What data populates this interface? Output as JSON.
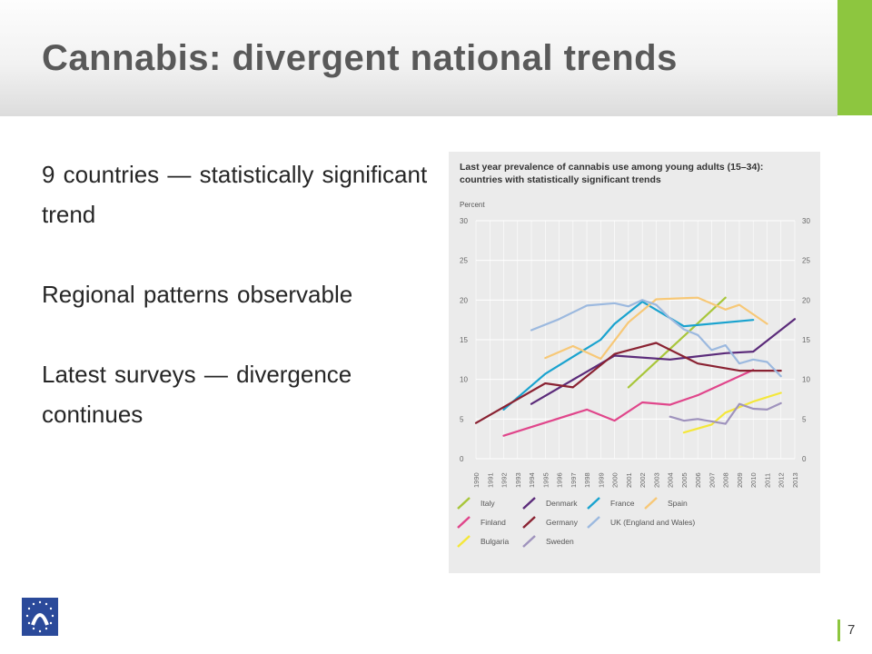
{
  "slide": {
    "title": "Cannabis: divergent national trends",
    "page_number": "7",
    "accent_color": "#8dc63f"
  },
  "bullets": [
    "9 countries — statistically significant trend",
    "Regional patterns observable",
    "Latest surveys — divergence continues"
  ],
  "logo": {
    "icon": "emcdda-logo-icon",
    "color": "#2b4a9a"
  },
  "chart_data": {
    "type": "line",
    "title": "Last year prevalence of cannabis use among young adults (15–34): countries with statistically significant trends",
    "ylabel": "Percent",
    "xlabel": "",
    "ylim": [
      0,
      30
    ],
    "yticks": [
      0,
      5,
      10,
      15,
      20,
      25,
      30
    ],
    "x": [
      "1990",
      "1991",
      "1992",
      "1993",
      "1994",
      "1995",
      "1996",
      "1997",
      "1998",
      "1999",
      "2000",
      "2001",
      "2002",
      "2003",
      "2004",
      "2005",
      "2006",
      "2007",
      "2008",
      "2009",
      "2010",
      "2011",
      "2012",
      "2013"
    ],
    "grid": true,
    "legend_position": "bottom",
    "series": [
      {
        "name": "Italy",
        "color": "#a8c63a",
        "points": [
          [
            2001,
            9.0
          ],
          [
            2008,
            20.3
          ]
        ]
      },
      {
        "name": "Denmark",
        "color": "#5b2b7a",
        "points": [
          [
            1994,
            6.9
          ],
          [
            2000,
            13.0
          ],
          [
            2004,
            12.5
          ],
          [
            2008,
            13.3
          ],
          [
            2010,
            13.5
          ],
          [
            2013,
            17.6
          ]
        ]
      },
      {
        "name": "France",
        "color": "#1aa3cf",
        "points": [
          [
            1992,
            6.2
          ],
          [
            1995,
            10.7
          ],
          [
            1999,
            15.0
          ],
          [
            2000,
            17.0
          ],
          [
            2002,
            19.8
          ],
          [
            2005,
            16.7
          ],
          [
            2010,
            17.5
          ]
        ]
      },
      {
        "name": "Spain",
        "color": "#f7c877",
        "points": [
          [
            1995,
            12.7
          ],
          [
            1997,
            14.2
          ],
          [
            1999,
            12.6
          ],
          [
            2001,
            17.2
          ],
          [
            2003,
            20.1
          ],
          [
            2006,
            20.3
          ],
          [
            2008,
            18.8
          ],
          [
            2009,
            19.4
          ],
          [
            2011,
            17.0
          ]
        ]
      },
      {
        "name": "Finland",
        "color": "#e0468b",
        "points": [
          [
            1992,
            2.9
          ],
          [
            1998,
            6.2
          ],
          [
            2000,
            4.8
          ],
          [
            2002,
            7.1
          ],
          [
            2004,
            6.8
          ],
          [
            2006,
            8.0
          ],
          [
            2010,
            11.2
          ]
        ]
      },
      {
        "name": "Germany",
        "color": "#8a2232",
        "points": [
          [
            1990,
            4.5
          ],
          [
            1995,
            9.5
          ],
          [
            1997,
            9.0
          ],
          [
            2000,
            13.2
          ],
          [
            2003,
            14.6
          ],
          [
            2006,
            12.0
          ],
          [
            2009,
            11.1
          ],
          [
            2012,
            11.1
          ]
        ]
      },
      {
        "name": "UK (England and Wales)",
        "color": "#9cb9df",
        "points": [
          [
            1994,
            16.2
          ],
          [
            1996,
            17.6
          ],
          [
            1998,
            19.3
          ],
          [
            2000,
            19.6
          ],
          [
            2001,
            19.2
          ],
          [
            2002,
            20.0
          ],
          [
            2003,
            19.4
          ],
          [
            2004,
            17.7
          ],
          [
            2005,
            16.3
          ],
          [
            2006,
            15.6
          ],
          [
            2007,
            13.7
          ],
          [
            2008,
            14.3
          ],
          [
            2009,
            12.0
          ],
          [
            2010,
            12.5
          ],
          [
            2011,
            12.2
          ],
          [
            2012,
            10.4
          ]
        ]
      },
      {
        "name": "Bulgaria",
        "color": "#f4e73a",
        "points": [
          [
            2005,
            3.3
          ],
          [
            2007,
            4.3
          ],
          [
            2008,
            5.8
          ],
          [
            2010,
            7.2
          ],
          [
            2012,
            8.3
          ]
        ]
      },
      {
        "name": "Sweden",
        "color": "#9f93bd",
        "points": [
          [
            2004,
            5.3
          ],
          [
            2005,
            4.8
          ],
          [
            2006,
            5.0
          ],
          [
            2008,
            4.4
          ],
          [
            2009,
            6.9
          ],
          [
            2010,
            6.3
          ],
          [
            2011,
            6.2
          ],
          [
            2012,
            7.0
          ]
        ]
      }
    ]
  }
}
